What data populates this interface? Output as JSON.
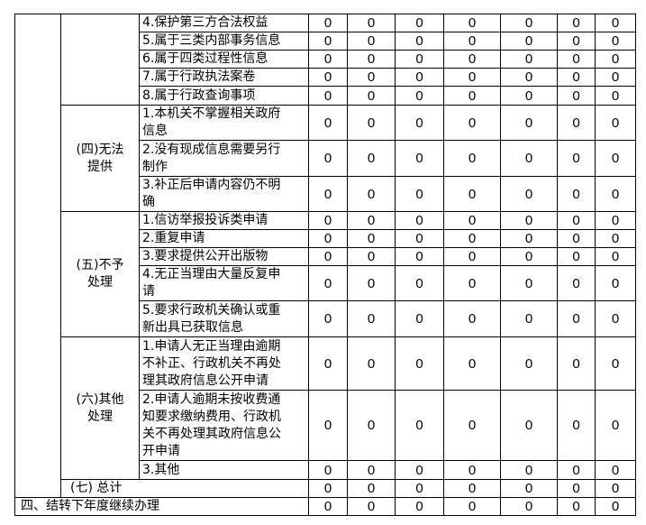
{
  "groups": [
    {
      "label": "",
      "items": [
        {
          "text": "4.保护第三方合法权益",
          "values": [
            0,
            0,
            0,
            0,
            0,
            0,
            0
          ]
        },
        {
          "text": "5.属于三类内部事务信息",
          "values": [
            0,
            0,
            0,
            0,
            0,
            0,
            0
          ]
        },
        {
          "text": "6.属于四类过程性信息",
          "values": [
            0,
            0,
            0,
            0,
            0,
            0,
            0
          ]
        },
        {
          "text": "7.属于行政执法案卷",
          "values": [
            0,
            0,
            0,
            0,
            0,
            0,
            0
          ]
        },
        {
          "text": "8.属于行政查询事项",
          "values": [
            0,
            0,
            0,
            0,
            0,
            0,
            0
          ]
        }
      ]
    },
    {
      "label": "(四)无法\n提供",
      "items": [
        {
          "text": "1.本机关不掌握相关政府\n信息",
          "values": [
            0,
            0,
            0,
            0,
            0,
            0,
            0
          ]
        },
        {
          "text": "2.没有现成信息需要另行\n制作",
          "values": [
            0,
            0,
            0,
            0,
            0,
            0,
            0
          ]
        },
        {
          "text": "3.补正后申请内容仍不明\n确",
          "values": [
            0,
            0,
            0,
            0,
            0,
            0,
            0
          ]
        }
      ]
    },
    {
      "label": "(五)不予\n处理",
      "items": [
        {
          "text": "1.信访举报投诉类申请",
          "values": [
            0,
            0,
            0,
            0,
            0,
            0,
            0
          ]
        },
        {
          "text": "2.重复申请",
          "values": [
            0,
            0,
            0,
            0,
            0,
            0,
            0
          ]
        },
        {
          "text": "3.要求提供公开出版物",
          "values": [
            0,
            0,
            0,
            0,
            0,
            0,
            0
          ]
        },
        {
          "text": "4.无正当理由大量反复申\n请",
          "values": [
            0,
            0,
            0,
            0,
            0,
            0,
            0
          ]
        },
        {
          "text": "5.要求行政机关确认或重\n新出具已获取信息",
          "values": [
            0,
            0,
            0,
            0,
            0,
            0,
            0
          ]
        }
      ]
    },
    {
      "label": "(六)其他\n处理",
      "items": [
        {
          "text": "1.申请人无正当理由逾期\n不补正、行政机关不再处\n理其政府信息公开申请",
          "values": [
            0,
            0,
            0,
            0,
            0,
            0,
            0
          ]
        },
        {
          "text": "2.申请人逾期未按收费通\n知要求缴纳费用、行政机\n关不再处理其政府信息公\n开申请",
          "values": [
            0,
            0,
            0,
            0,
            0,
            0,
            0
          ]
        },
        {
          "text": "3.其他",
          "values": [
            0,
            0,
            0,
            0,
            0,
            0,
            0
          ]
        }
      ]
    }
  ],
  "total": {
    "label": "(七) 总计",
    "values": [
      0,
      0,
      0,
      0,
      0,
      0,
      0
    ]
  },
  "carryover": {
    "label": "四、结转下年度继续办理",
    "values": [
      0,
      0,
      0,
      0,
      0,
      0,
      0
    ]
  }
}
